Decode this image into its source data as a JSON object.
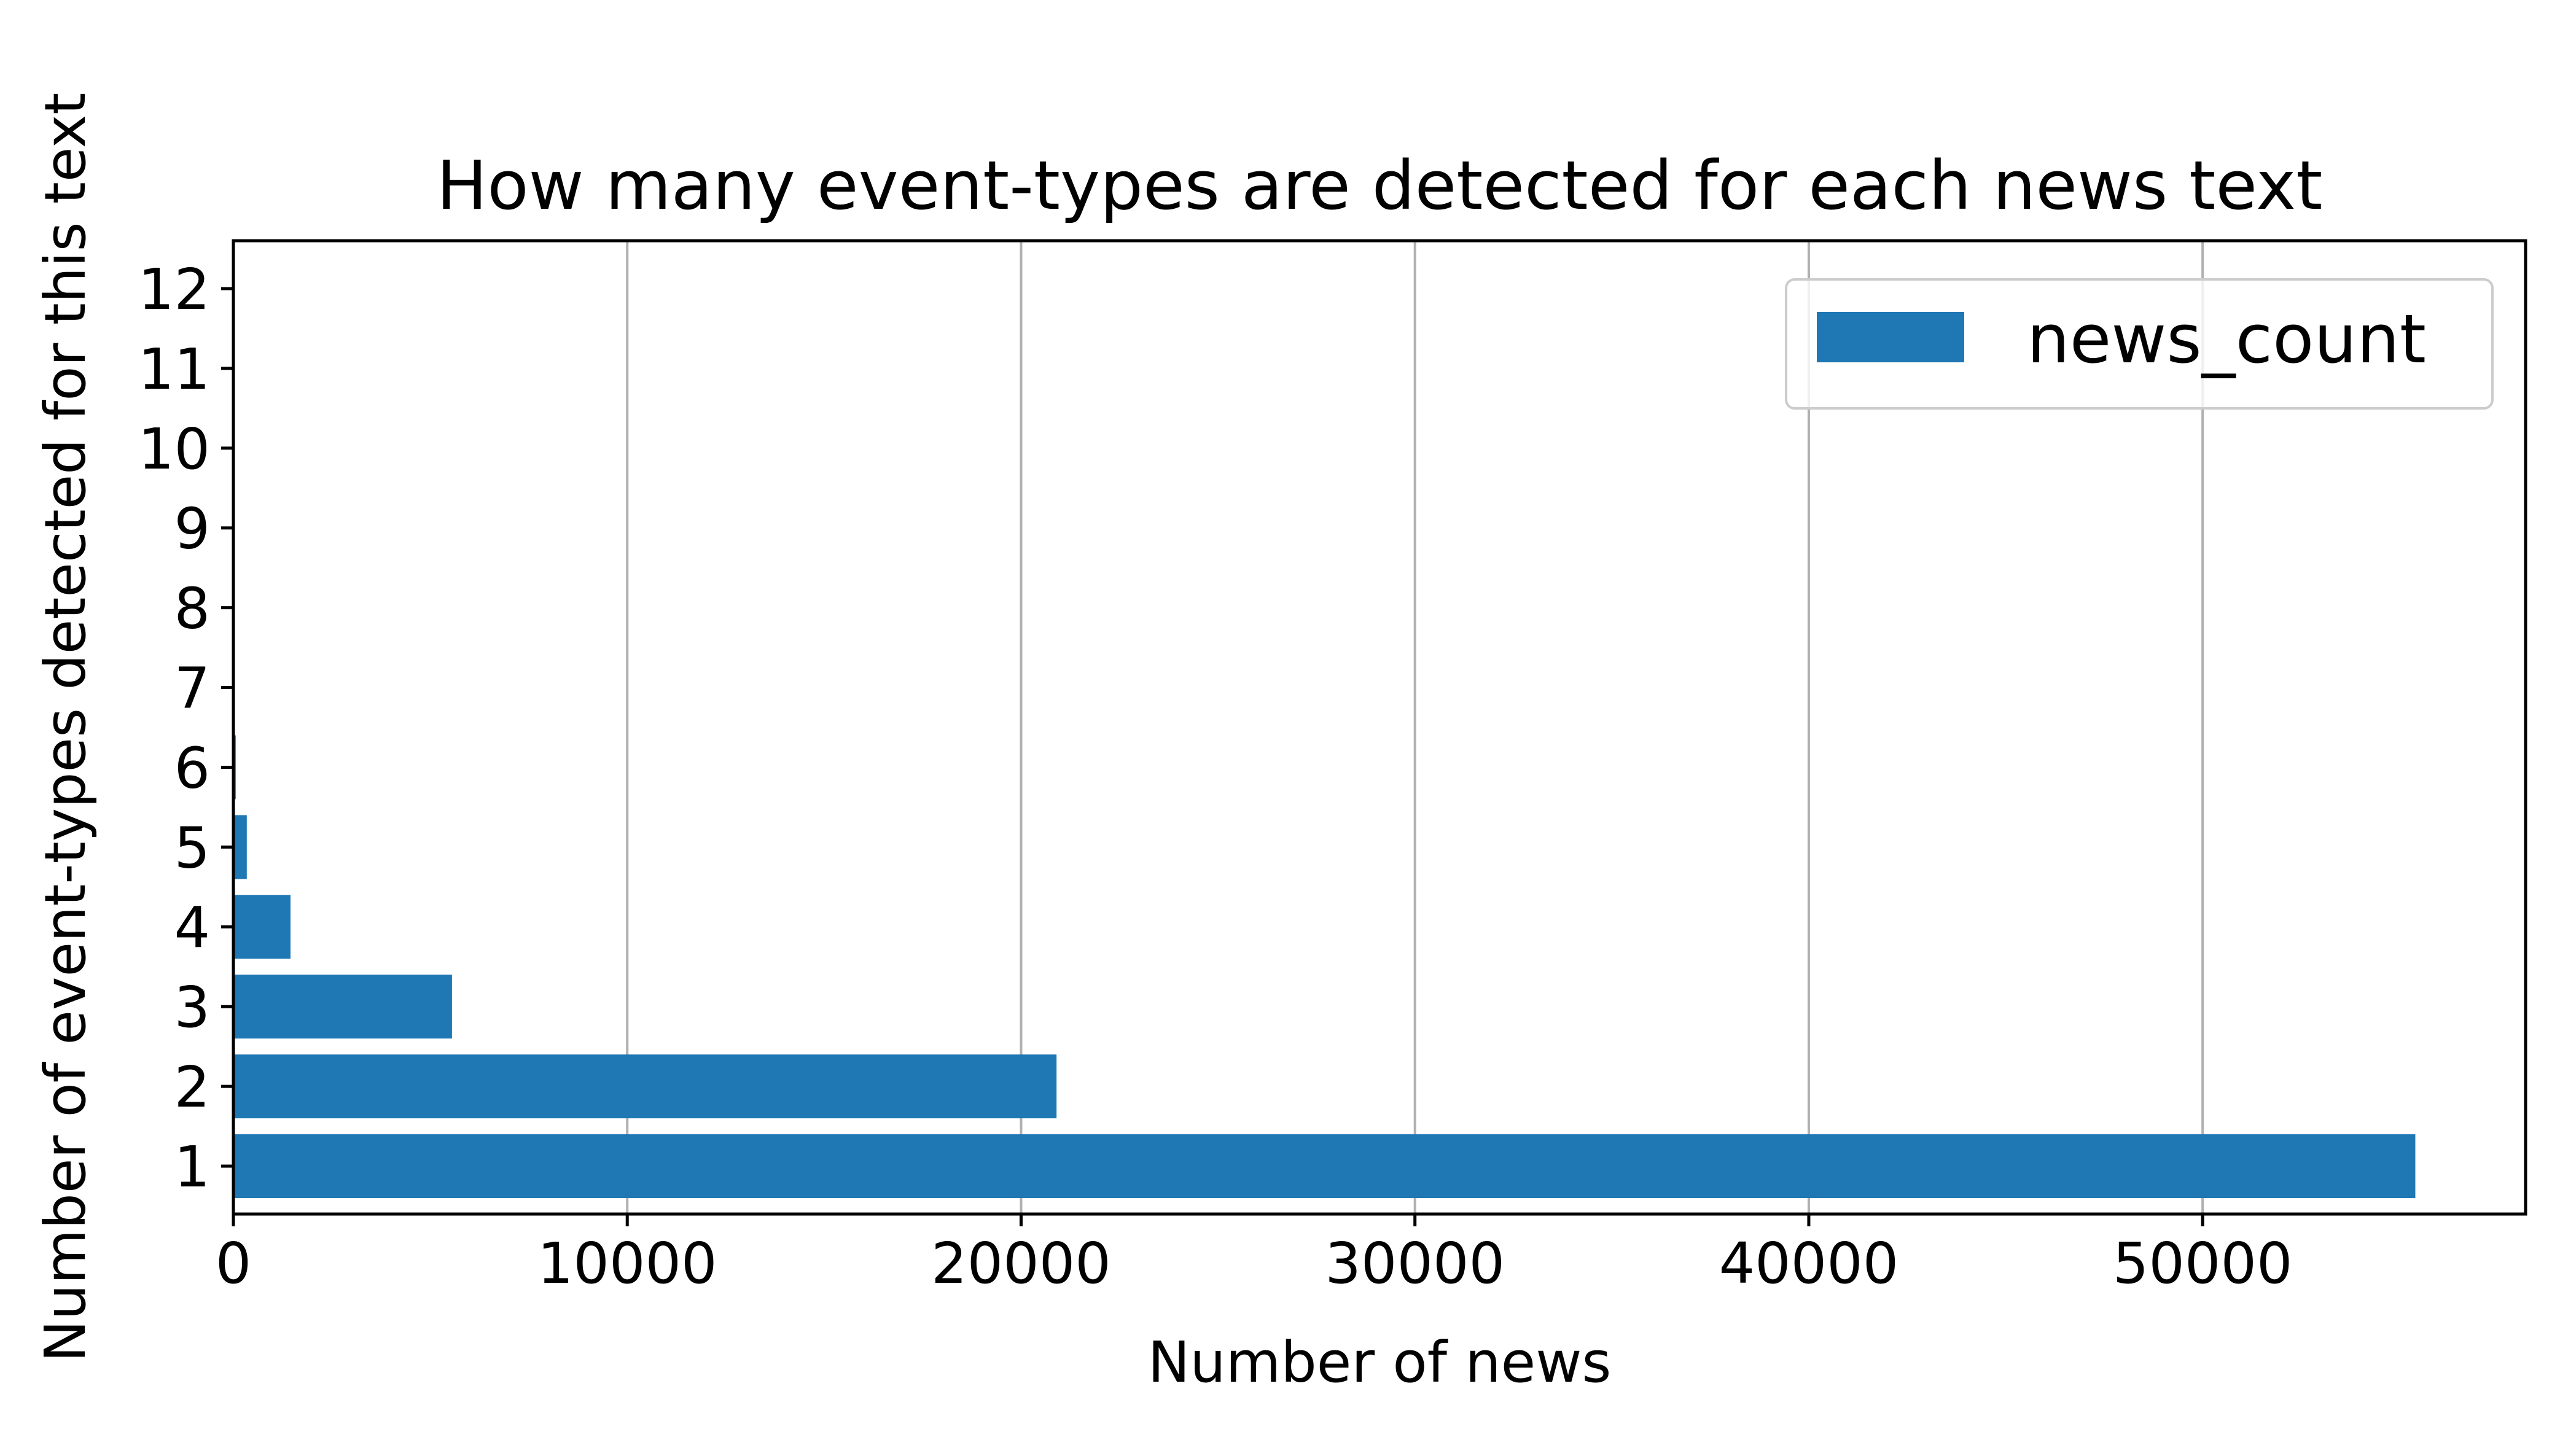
{
  "chart_data": {
    "type": "bar",
    "orientation": "horizontal",
    "title": "How many event-types are detected for each news text",
    "xlabel": "Number of news",
    "ylabel": "Number of event-types detected for this text",
    "categories": [
      "1",
      "2",
      "3",
      "4",
      "5",
      "6",
      "7",
      "8",
      "9",
      "10",
      "11",
      "12"
    ],
    "series": [
      {
        "name": "news_count",
        "values": [
          55400,
          20900,
          5550,
          1450,
          340,
          60,
          0,
          0,
          0,
          0,
          0,
          0
        ],
        "color": "#1f77b4"
      }
    ],
    "xlim": [
      0,
      58200
    ],
    "xticks": [
      0,
      10000,
      20000,
      30000,
      40000,
      50000
    ],
    "xtick_labels": [
      "0",
      "10000",
      "20000",
      "30000",
      "40000",
      "50000"
    ],
    "grid": "vertical",
    "grid_color": "#b0b0b0",
    "legend": {
      "position": "top-right",
      "entries": [
        "news_count"
      ]
    }
  }
}
